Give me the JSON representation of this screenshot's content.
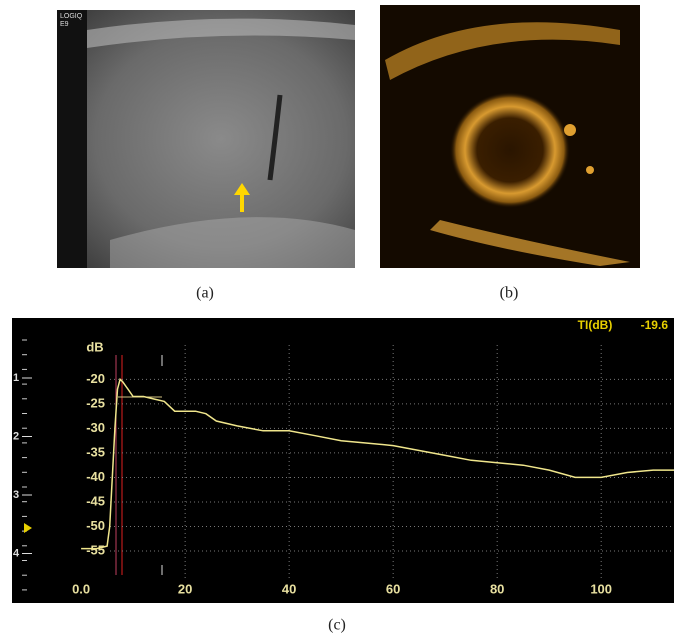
{
  "panel_labels": [
    "(a)",
    "(b)",
    "(c)"
  ],
  "image_a_label": "LOGIQ\nE9",
  "depth_labels": [
    "1",
    "2",
    "3",
    "4"
  ],
  "chart_data": {
    "type": "line",
    "y_label": "dB",
    "readout_label": "TI(dB)",
    "readout_value": "-19.6",
    "xlim": [
      -0.6,
      114
    ],
    "ylim": [
      -60.5,
      -13
    ],
    "xticks": [
      {
        "value": 0,
        "label": "0.0"
      },
      20,
      40,
      60,
      80,
      100
    ],
    "yticks": [
      -20,
      -25,
      -30,
      -35,
      -40,
      -45,
      -50,
      -55
    ],
    "grid": true,
    "series": [
      {
        "color": "#f0e68c",
        "x": [
          0,
          3,
          5,
          5.5,
          6,
          6.5,
          7,
          7.5,
          8,
          9,
          10,
          12,
          14,
          16,
          18,
          20,
          22,
          24,
          26,
          30,
          35,
          40,
          45,
          50,
          55,
          60,
          65,
          70,
          75,
          80,
          85,
          90,
          95,
          100,
          105,
          110,
          114
        ],
        "values": [
          -54.5,
          -54.5,
          -54,
          -50,
          -40,
          -30,
          -22,
          -20,
          -20.5,
          -22,
          -23.5,
          -23.5,
          -24,
          -24.5,
          -26.5,
          -26.5,
          -26.5,
          -27,
          -28.5,
          -29.5,
          -30.5,
          -30.5,
          -31.5,
          -32.5,
          -33,
          -33.5,
          -34.5,
          -35.5,
          -36.5,
          -37,
          -37.5,
          -38.5,
          -40,
          -40,
          -39,
          -38.5,
          -38.5
        ]
      }
    ]
  }
}
